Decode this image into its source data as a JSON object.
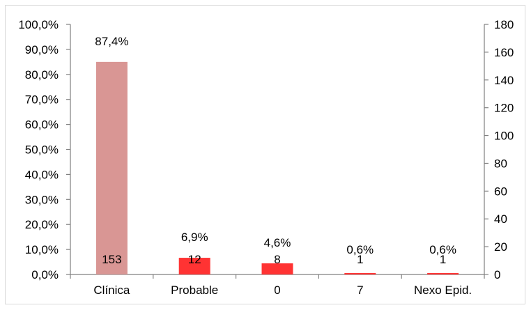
{
  "chart_data": {
    "type": "bar",
    "categories": [
      "Clínica",
      "Probable",
      "0",
      "7",
      "Nexo Epid."
    ],
    "series": [
      {
        "values": [
          153,
          12,
          8,
          1,
          1
        ],
        "percent_labels": [
          "87,4%",
          "6,9%",
          "4,6%",
          "0,6%",
          "0,6%"
        ],
        "count_labels": [
          "153",
          "12",
          "8",
          "1",
          "1"
        ],
        "colors": [
          "#d99694",
          "#ff3333",
          "#ff3333",
          "#ff3333",
          "#ff3333"
        ]
      }
    ],
    "title": "",
    "xlabel": "",
    "ylabel": "",
    "y_left": {
      "lim": [
        0,
        100
      ],
      "ticks": [
        0,
        10,
        20,
        30,
        40,
        50,
        60,
        70,
        80,
        90,
        100
      ],
      "tick_labels": [
        "0,0%",
        "10,0%",
        "20,0%",
        "30,0%",
        "40,0%",
        "50,0%",
        "60,0%",
        "70,0%",
        "80,0%",
        "90,0%",
        "100,0%"
      ]
    },
    "y_right": {
      "lim": [
        0,
        180
      ],
      "ticks": [
        0,
        20,
        40,
        60,
        80,
        100,
        120,
        140,
        160,
        180
      ],
      "tick_labels": [
        "0",
        "20",
        "40",
        "60",
        "80",
        "100",
        "120",
        "140",
        "160",
        "180"
      ]
    },
    "grid": false,
    "legend": "none"
  }
}
